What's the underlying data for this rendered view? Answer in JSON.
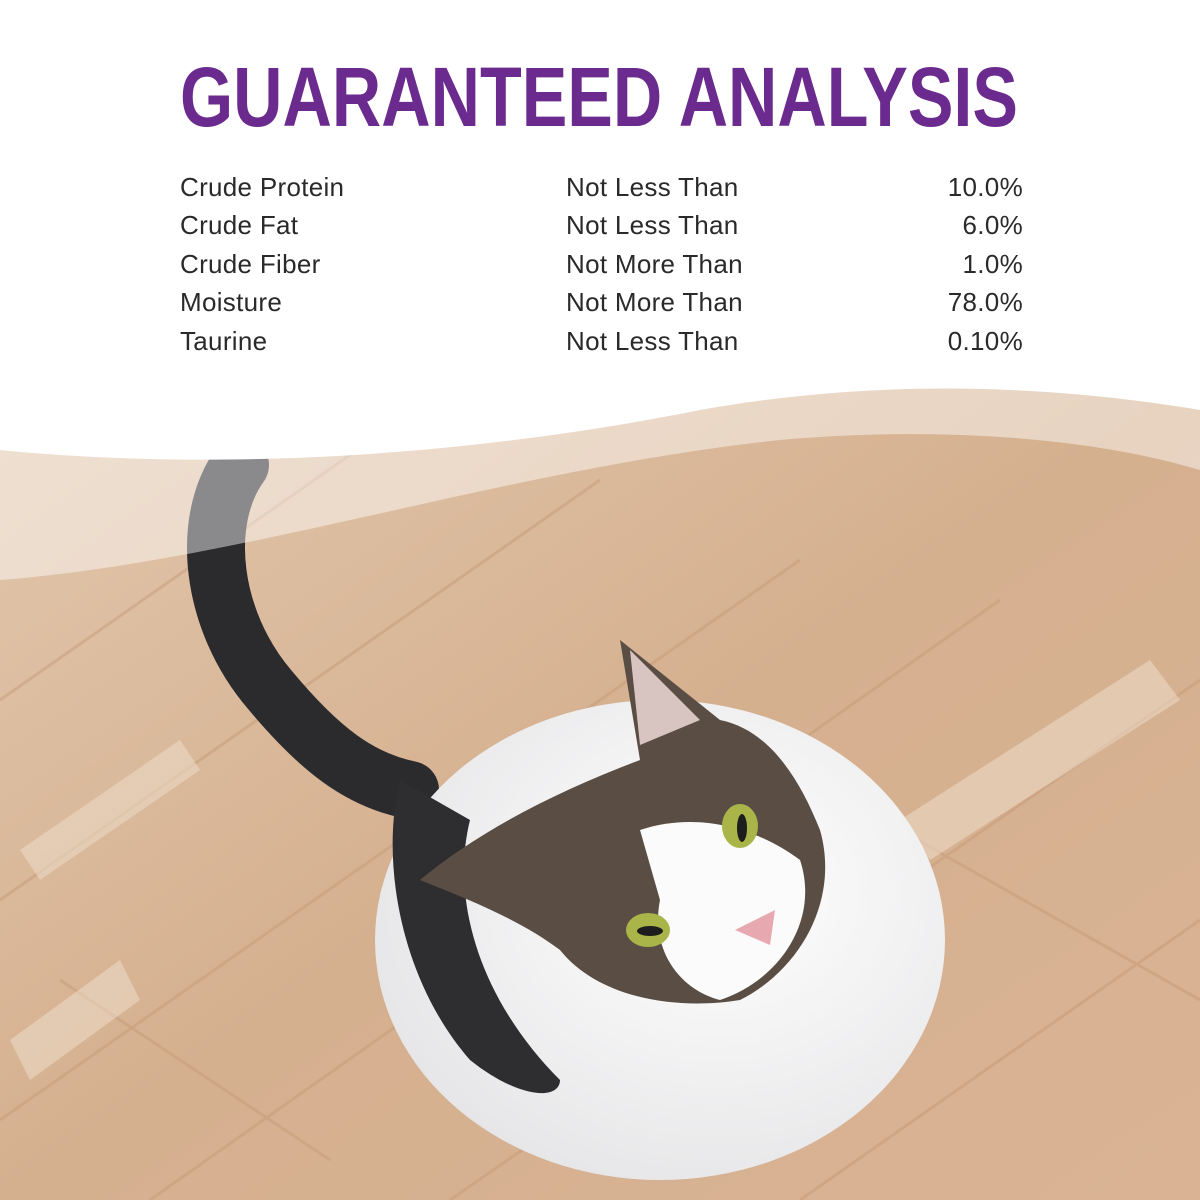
{
  "title": "GUARANTEED ANALYSIS",
  "colors": {
    "title": "#6b2a8e",
    "text": "#2a2a2a",
    "floor": "#d8b596"
  },
  "analysis": [
    {
      "nutrient": "Crude Protein",
      "qualifier": "Not Less Than",
      "value": "10.0%"
    },
    {
      "nutrient": "Crude Fat",
      "qualifier": "Not Less Than",
      "value": "6.0%"
    },
    {
      "nutrient": "Crude Fiber",
      "qualifier": "Not More Than",
      "value": "1.0%"
    },
    {
      "nutrient": "Moisture",
      "qualifier": "Not More Than",
      "value": "78.0%"
    },
    {
      "nutrient": "Taurine",
      "qualifier": "Not Less Than",
      "value": "0.10%"
    }
  ]
}
